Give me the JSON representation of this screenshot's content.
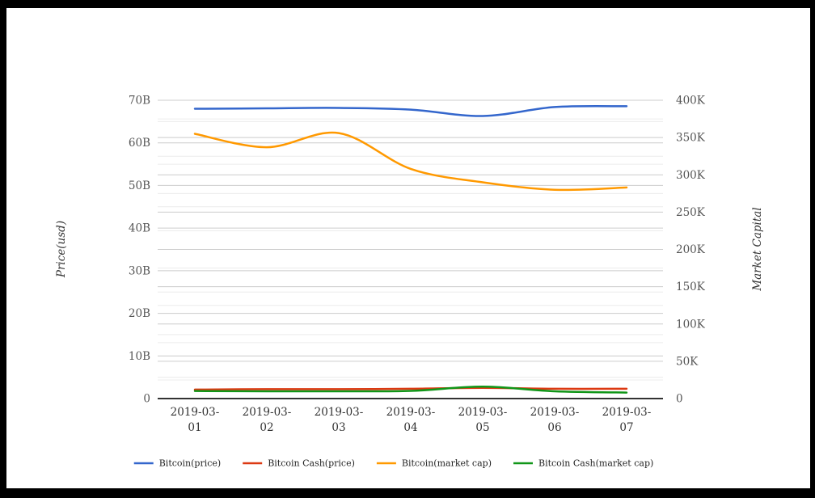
{
  "figure": {
    "background_color": "#ffffff",
    "frame_color": "#000000"
  },
  "chart_data": {
    "type": "line",
    "title": "",
    "x_categories": [
      "2019-03-01",
      "2019-03-02",
      "2019-03-03",
      "2019-03-04",
      "2019-03-05",
      "2019-03-06",
      "2019-03-07"
    ],
    "left_axis": {
      "title": "Price(usd)",
      "tick_labels": [
        "0",
        "10B",
        "20B",
        "30B",
        "40B",
        "50B",
        "60B",
        "70B"
      ],
      "tick_values": [
        0,
        10,
        20,
        30,
        40,
        50,
        60,
        70
      ],
      "min": 0,
      "max": 70,
      "unit": "billions_usd"
    },
    "right_axis": {
      "title": "Market Capital",
      "tick_labels": [
        "0",
        "50K",
        "100K",
        "150K",
        "200K",
        "250K",
        "300K",
        "350K",
        "400K"
      ],
      "tick_values": [
        0,
        50,
        100,
        150,
        200,
        250,
        300,
        350,
        400
      ],
      "min": 0,
      "max": 400,
      "unit": "thousands"
    },
    "grid": true,
    "legend_position": "bottom",
    "series": [
      {
        "name": "Bitcoin(price)",
        "color": "#3366cc",
        "axis": "left",
        "unit": "B",
        "values": [
          68.0,
          68.1,
          68.2,
          67.8,
          66.3,
          68.4,
          68.6
        ]
      },
      {
        "name": "Bitcoin Cash(price)",
        "color": "#dc3912",
        "axis": "left",
        "unit": "B",
        "values": [
          2.1,
          2.2,
          2.2,
          2.3,
          2.5,
          2.3,
          2.3
        ]
      },
      {
        "name": "Bitcoin(market cap)",
        "color": "#ff9900",
        "axis": "right",
        "unit": "K",
        "values": [
          355,
          337,
          356,
          308,
          290,
          280,
          283
        ]
      },
      {
        "name": "Bitcoin Cash(market cap)",
        "color": "#109618",
        "axis": "right",
        "unit": "K",
        "values": [
          10.1,
          9.8,
          9.8,
          10.3,
          15.9,
          9.8,
          8.0
        ]
      }
    ]
  }
}
